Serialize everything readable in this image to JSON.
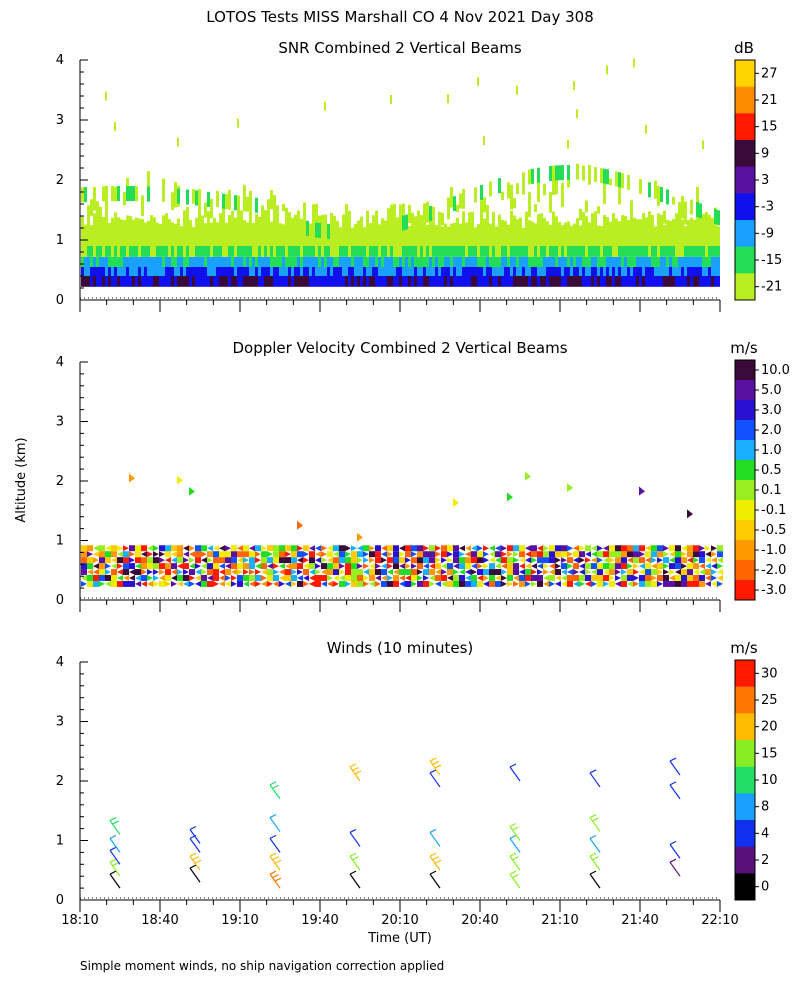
{
  "header": {
    "title": "LOTOS Tests MISS Marshall CO   4 Nov 2021 Day 308"
  },
  "footer_note": "Simple moment winds, no ship navigation correction applied",
  "y_axis_label": "Altitude (km)",
  "x_axis_label": "Time (UT)",
  "x_ticks": [
    "18:10",
    "18:40",
    "19:10",
    "19:40",
    "20:10",
    "20:40",
    "21:10",
    "21:40",
    "22:10"
  ],
  "x_range_minutes": [
    0,
    240
  ],
  "y_ticks": [
    "0",
    "1",
    "2",
    "3",
    "4"
  ],
  "chart_data": [
    {
      "type": "heatmap",
      "title": "SNR Combined 2 Vertical Beams",
      "ylabel": "Altitude (km)",
      "xlabel": "",
      "ylim": [
        0,
        4
      ],
      "colorbar": {
        "unit": "dB",
        "labels": [
          "27",
          "21",
          "15",
          "9",
          "3",
          "-3",
          "-9",
          "-15",
          "-21"
        ],
        "colors": [
          "#ffd400",
          "#ff8c00",
          "#ff1a00",
          "#3a0a3a",
          "#5a10a0",
          "#1010ee",
          "#1aa0ff",
          "#22dd55",
          "#bbee22"
        ]
      },
      "profile_snapshot": [
        {
          "altitude_km": 0.3,
          "snr_db": 3
        },
        {
          "altitude_km": 0.5,
          "snr_db": -9
        },
        {
          "altitude_km": 0.7,
          "snr_db": -15
        },
        {
          "altitude_km": 1.0,
          "snr_db": -21
        },
        {
          "altitude_km": 1.6,
          "snr_db": -21
        },
        {
          "altitude_km": 2.0,
          "snr_db": -21
        }
      ]
    },
    {
      "type": "heatmap",
      "title": "Doppler Velocity Combined 2 Vertical Beams",
      "ylabel": "Altitude (km)",
      "xlabel": "",
      "ylim": [
        0,
        4
      ],
      "colorbar": {
        "unit": "m/s",
        "labels": [
          "10.0",
          "5.0",
          "3.0",
          "2.0",
          "1.0",
          "0.5",
          "0.1",
          "-0.1",
          "-0.5",
          "-1.0",
          "-2.0",
          "-3.0"
        ],
        "colors": [
          "#3a0a3a",
          "#5a10a0",
          "#2a10d0",
          "#1050ff",
          "#1ab0ff",
          "#22dd22",
          "#99ee22",
          "#eeee00",
          "#ffcc00",
          "#ff9900",
          "#ff6600",
          "#ff1a00"
        ]
      }
    },
    {
      "type": "scatter",
      "title": "Winds (10 minutes)",
      "ylabel": "Altitude (km)",
      "xlabel": "Time (UT)",
      "ylim": [
        0,
        4
      ],
      "colorbar": {
        "unit": "m/s",
        "labels": [
          "30",
          "25",
          "20",
          "15",
          "10",
          "8",
          "4",
          "2",
          "0"
        ],
        "colors": [
          "#ff1a00",
          "#ff7700",
          "#ffbb00",
          "#88ee22",
          "#22dd66",
          "#1aa0ff",
          "#1030ee",
          "#5a107a",
          "#000000"
        ]
      },
      "series": [
        {
          "time": "18:25",
          "barbs": [
            {
              "alt": 0.2,
              "speed": 1
            },
            {
              "alt": 0.4,
              "speed": 18
            },
            {
              "alt": 0.6,
              "speed": 5
            },
            {
              "alt": 0.8,
              "speed": 8
            },
            {
              "alt": 1.1,
              "speed": 12
            }
          ]
        },
        {
          "time": "18:55",
          "barbs": [
            {
              "alt": 0.3,
              "speed": 1
            },
            {
              "alt": 0.5,
              "speed": 20
            },
            {
              "alt": 0.8,
              "speed": 5
            },
            {
              "alt": 0.95,
              "speed": 6
            }
          ]
        },
        {
          "time": "19:25",
          "barbs": [
            {
              "alt": 0.2,
              "speed": 25
            },
            {
              "alt": 0.5,
              "speed": 22
            },
            {
              "alt": 0.8,
              "speed": 6
            },
            {
              "alt": 1.15,
              "speed": 9
            },
            {
              "alt": 1.7,
              "speed": 14
            }
          ]
        },
        {
          "time": "19:55",
          "barbs": [
            {
              "alt": 0.2,
              "speed": 1
            },
            {
              "alt": 0.5,
              "speed": 18
            },
            {
              "alt": 0.9,
              "speed": 5
            },
            {
              "alt": 2.0,
              "speed": 20
            }
          ]
        },
        {
          "time": "20:25",
          "barbs": [
            {
              "alt": 0.2,
              "speed": 1
            },
            {
              "alt": 0.5,
              "speed": 20
            },
            {
              "alt": 0.9,
              "speed": 8
            },
            {
              "alt": 1.9,
              "speed": 6
            },
            {
              "alt": 2.1,
              "speed": 20
            }
          ]
        },
        {
          "time": "20:55",
          "barbs": [
            {
              "alt": 0.2,
              "speed": 18
            },
            {
              "alt": 0.5,
              "speed": 18
            },
            {
              "alt": 0.8,
              "speed": 8
            },
            {
              "alt": 1.0,
              "speed": 15
            },
            {
              "alt": 2.0,
              "speed": 5
            }
          ]
        },
        {
          "time": "21:25",
          "barbs": [
            {
              "alt": 0.2,
              "speed": 1
            },
            {
              "alt": 0.5,
              "speed": 15
            },
            {
              "alt": 0.8,
              "speed": 8
            },
            {
              "alt": 1.15,
              "speed": 15
            },
            {
              "alt": 1.9,
              "speed": 5
            }
          ]
        },
        {
          "time": "21:55",
          "barbs": [
            {
              "alt": 0.4,
              "speed": 3
            },
            {
              "alt": 0.7,
              "speed": 4
            },
            {
              "alt": 1.7,
              "speed": 4
            },
            {
              "alt": 2.1,
              "speed": 6
            }
          ]
        }
      ]
    }
  ]
}
